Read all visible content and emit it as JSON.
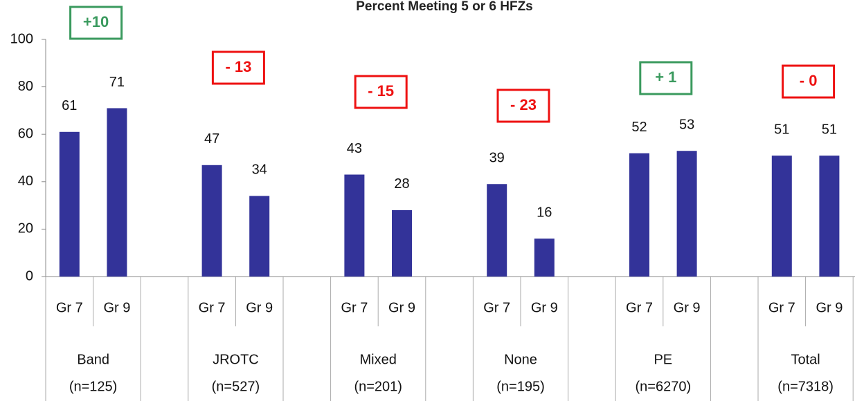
{
  "chart_data": {
    "type": "bar",
    "title": "Percent Meeting 5 or 6 HFZs",
    "color": "#333399",
    "ylim": [
      0,
      100
    ],
    "yticks": [
      0,
      20,
      40,
      60,
      80,
      100
    ],
    "groups": [
      {
        "label": "Band",
        "sublabel": "(n=125)",
        "categories": [
          "Gr 7",
          "Gr 9"
        ],
        "values": [
          61,
          71
        ],
        "change": "+10",
        "change_color": "#3a9a5e"
      },
      {
        "label": "JROTC",
        "sublabel": "(n=527)",
        "categories": [
          "Gr 7",
          "Gr 9"
        ],
        "values": [
          47,
          34
        ],
        "change": "- 13",
        "change_color": "#ee1111"
      },
      {
        "label": "Mixed",
        "sublabel": "(n=201)",
        "categories": [
          "Gr 7",
          "Gr 9"
        ],
        "values": [
          43,
          28
        ],
        "change": "- 15",
        "change_color": "#ee1111"
      },
      {
        "label": "None",
        "sublabel": "(n=195)",
        "categories": [
          "Gr 7",
          "Gr 9"
        ],
        "values": [
          39,
          16
        ],
        "change": "- 23",
        "change_color": "#ee1111"
      },
      {
        "label": "PE",
        "sublabel": "(n=6270)",
        "categories": [
          "Gr 7",
          "Gr 9"
        ],
        "values": [
          52,
          53
        ],
        "change": "+ 1",
        "change_color": "#3a9a5e"
      },
      {
        "label": "Total",
        "sublabel": "(n=7318)",
        "categories": [
          "Gr 7",
          "Gr 9"
        ],
        "values": [
          51,
          51
        ],
        "change": "- 0",
        "change_color": "#ee1111"
      }
    ]
  }
}
